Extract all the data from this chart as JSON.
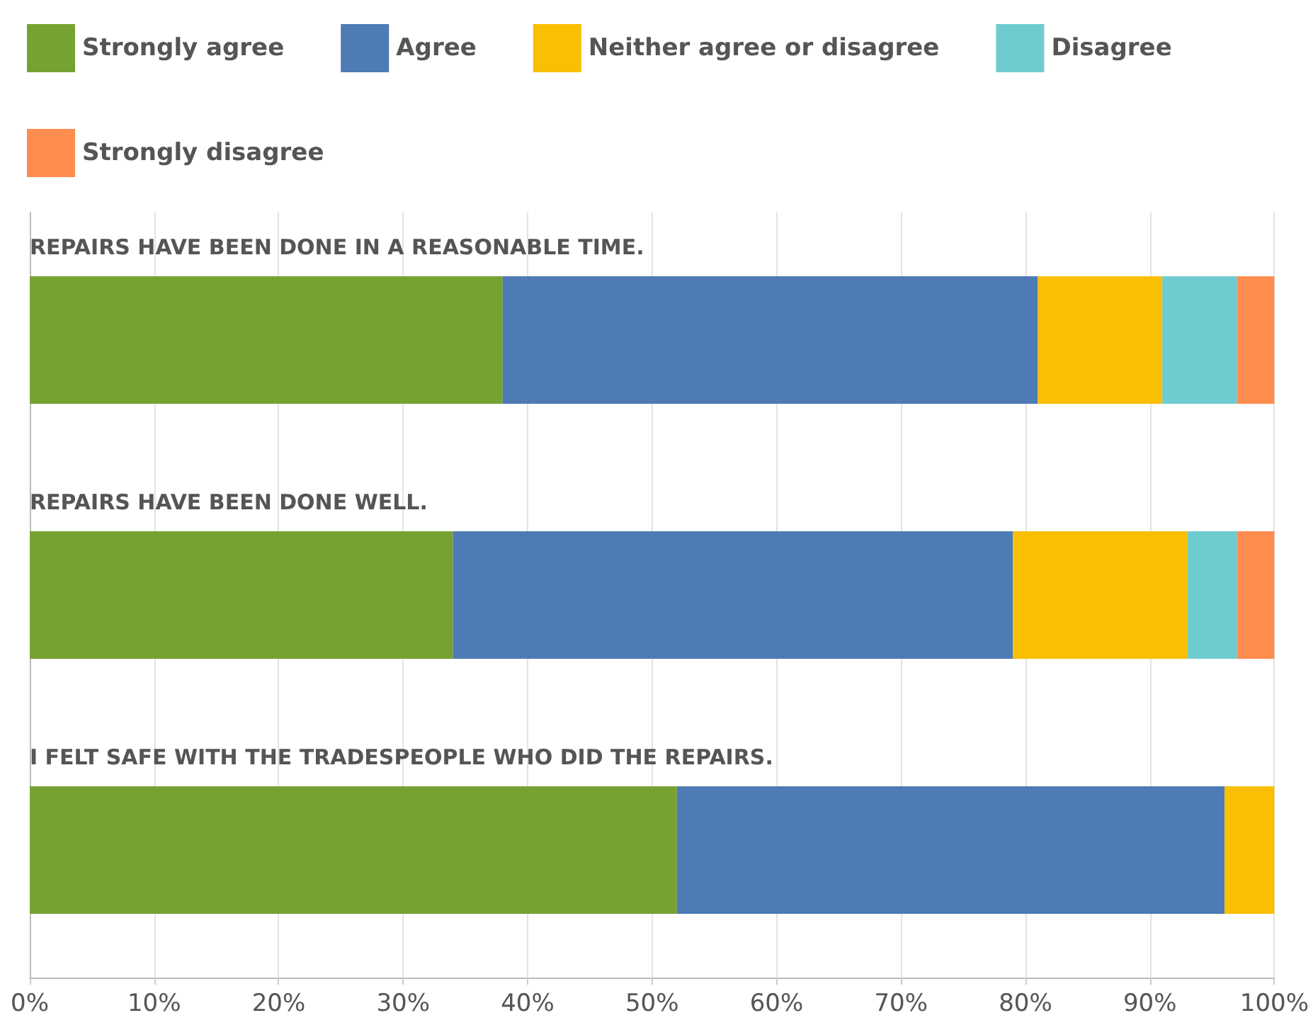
{
  "chart_data": {
    "type": "bar",
    "orientation": "horizontal",
    "stacked": true,
    "categories": [
      "REPAIRS HAVE BEEN DONE IN A REASONABLE TIME.",
      "REPAIRS HAVE BEEN DONE WELL.",
      "I FELT SAFE WITH THE TRADESPEOPLE WHO DID THE REPAIRS."
    ],
    "series": [
      {
        "name": "Strongly agree",
        "color": "#76a232",
        "values": [
          38,
          34,
          52
        ]
      },
      {
        "name": "Agree",
        "color": "#4e7ab5",
        "values": [
          43,
          45,
          44
        ]
      },
      {
        "name": "Neither agree or disagree",
        "color": "#f9bf00",
        "values": [
          10,
          14,
          4
        ]
      },
      {
        "name": "Disagree",
        "color": "#6ecbcf",
        "values": [
          6,
          4,
          0
        ]
      },
      {
        "name": "Strongly disagree",
        "color": "#fd8c4e",
        "values": [
          3,
          3,
          0
        ]
      }
    ],
    "xlim": [
      0,
      100
    ],
    "xticks": [
      {
        "value": 0,
        "label": "0%"
      },
      {
        "value": 10,
        "label": "10%"
      },
      {
        "value": 20,
        "label": "20%"
      },
      {
        "value": 30,
        "label": "30%"
      },
      {
        "value": 40,
        "label": "40%"
      },
      {
        "value": 50,
        "label": "50%"
      },
      {
        "value": 60,
        "label": "60%"
      },
      {
        "value": 70,
        "label": "70%"
      },
      {
        "value": 80,
        "label": "80%"
      },
      {
        "value": 90,
        "label": "90%"
      },
      {
        "value": 100,
        "label": "100%"
      }
    ],
    "grid": "x",
    "legend": "top left"
  }
}
